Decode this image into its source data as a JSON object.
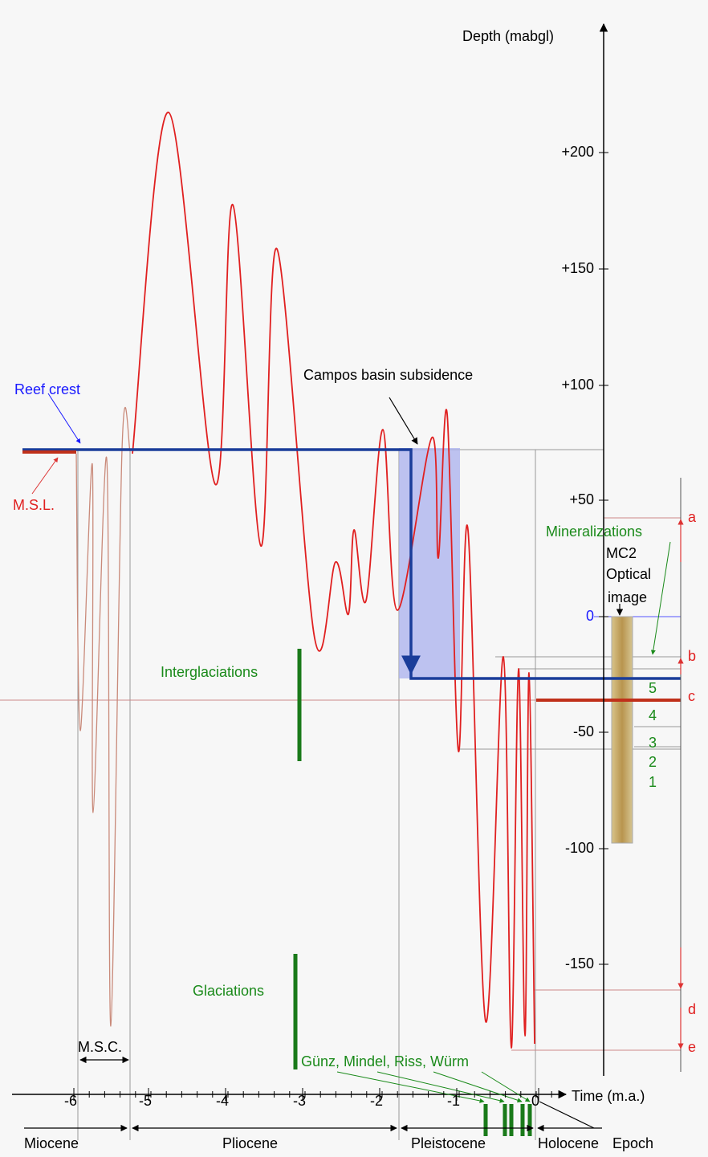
{
  "y_axis": {
    "label": "Depth (mabgl)",
    "ticks": [
      "+200",
      "+150",
      "+100",
      "+50",
      "0",
      "-50",
      "-100",
      "-150"
    ]
  },
  "x_axis": {
    "label": "Time (m.a.)",
    "ticks": [
      "-6",
      "-5",
      "-4",
      "-3",
      "-2",
      "-1",
      "0"
    ]
  },
  "epochs": {
    "label": "Epoch",
    "names": [
      "Miocene",
      "Pliocene",
      "Pleistocene",
      "Holocene"
    ]
  },
  "labels": {
    "reef_crest": "Reef crest",
    "msl": "M.S.L.",
    "subsidence": "Campos basin subsidence",
    "mineralizations": "Mineralizations",
    "core": [
      "MC2",
      "Optical",
      "image"
    ],
    "interglaciations": "Interglaciations",
    "glaciations": "Glaciations",
    "msc": "M.S.C.",
    "glacial_stages": "Günz, Mindel, Riss, Würm"
  },
  "levels": [
    "a",
    "b",
    "c",
    "d",
    "e"
  ],
  "mineralization_numbers": [
    "5",
    "4",
    "3",
    "2",
    "1"
  ]
}
